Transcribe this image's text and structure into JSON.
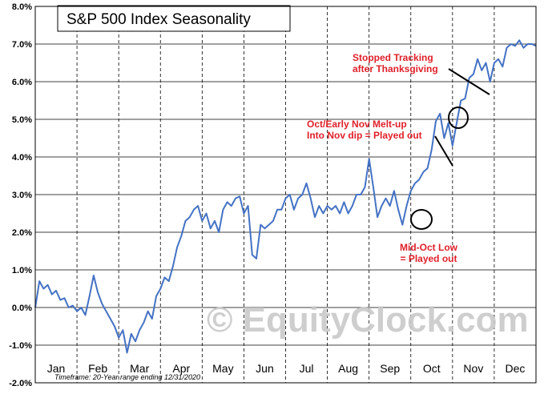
{
  "chart_data": {
    "type": "line",
    "title": "S&P 500 Index Seasonality",
    "footnote": "Timeframe: 20-Year range ending 12/31/2020",
    "watermark": "© EquityClock.com",
    "xlabel": "",
    "ylabel": "",
    "ylim": [
      -2.0,
      8.0
    ],
    "y_tick_values": [
      -2.0,
      -1.0,
      0.0,
      1.0,
      2.0,
      3.0,
      4.0,
      5.0,
      6.0,
      7.0,
      8.0
    ],
    "y_tick_labels": [
      "-2.0%",
      "-1.0%",
      "0.0%",
      "1.0%",
      "2.0%",
      "3.0%",
      "4.0%",
      "5.0%",
      "6.0%",
      "7.0%",
      "8.0%"
    ],
    "categories": [
      "Jan",
      "Feb",
      "Mar",
      "Apr",
      "May",
      "Jun",
      "Jul",
      "Aug",
      "Sep",
      "Oct",
      "Nov",
      "Dec"
    ],
    "grid": {
      "horizontal": true,
      "vertical": "dashed at month boundaries"
    },
    "line_color": "#4472c4",
    "annotation_color": "#e0202a",
    "series": [
      {
        "x": [
          0,
          0.1,
          0.2,
          0.3,
          0.4,
          0.5,
          0.6,
          0.7,
          0.8,
          0.9,
          1.0,
          1.1,
          1.2,
          1.3,
          1.4,
          1.5,
          1.6,
          1.7,
          1.8,
          1.9,
          2.0,
          2.1,
          2.2,
          2.3,
          2.4,
          2.5,
          2.6,
          2.7,
          2.8,
          2.9,
          3.0,
          3.1,
          3.2,
          3.3,
          3.4,
          3.5,
          3.6,
          3.7,
          3.8,
          3.9,
          4.0,
          4.1,
          4.2,
          4.3,
          4.4,
          4.5,
          4.6,
          4.7,
          4.8,
          4.9,
          5.0,
          5.1,
          5.2,
          5.3,
          5.4,
          5.5,
          5.6,
          5.7,
          5.8,
          5.9,
          6.0,
          6.1,
          6.2,
          6.3,
          6.4,
          6.5,
          6.6,
          6.7,
          6.8,
          6.9,
          7.0,
          7.1,
          7.2,
          7.3,
          7.4,
          7.5,
          7.6,
          7.7,
          7.8,
          7.9,
          8.0,
          8.1,
          8.2,
          8.3,
          8.4,
          8.5,
          8.6,
          8.7,
          8.8,
          8.9,
          9.0,
          9.1,
          9.2,
          9.3,
          9.4,
          9.5,
          9.6,
          9.7,
          9.8,
          9.9,
          10.0,
          10.1,
          10.2,
          10.3,
          10.4,
          10.5,
          10.6,
          10.7,
          10.8,
          10.9,
          11.0,
          11.1,
          11.2,
          11.3,
          11.4,
          11.5,
          11.6,
          11.7,
          11.8,
          11.9,
          12.0
        ],
        "values": [
          0.0,
          0.7,
          0.5,
          0.6,
          0.35,
          0.45,
          0.2,
          0.25,
          0.0,
          0.05,
          -0.1,
          0.0,
          -0.2,
          0.3,
          0.85,
          0.4,
          0.1,
          -0.1,
          -0.3,
          -0.5,
          -0.8,
          -0.6,
          -1.2,
          -0.7,
          -0.9,
          -0.6,
          -0.4,
          -0.1,
          -0.3,
          0.3,
          0.5,
          0.8,
          0.7,
          1.1,
          1.6,
          1.9,
          2.3,
          2.4,
          2.6,
          2.7,
          2.3,
          2.5,
          2.1,
          2.3,
          2.0,
          2.6,
          2.8,
          2.7,
          2.9,
          2.95,
          2.5,
          2.7,
          1.4,
          1.3,
          2.2,
          2.1,
          2.2,
          2.3,
          2.6,
          2.6,
          2.9,
          3.0,
          2.6,
          2.9,
          3.0,
          3.3,
          2.9,
          2.4,
          2.7,
          2.5,
          2.7,
          2.6,
          2.7,
          2.5,
          2.8,
          2.5,
          2.7,
          3.0,
          3.0,
          3.2,
          3.95,
          3.2,
          2.4,
          2.7,
          2.9,
          2.7,
          3.1,
          2.6,
          2.2,
          2.7,
          3.1,
          3.3,
          3.4,
          3.6,
          3.7,
          4.2,
          4.95,
          5.15,
          4.5,
          4.9,
          4.3,
          4.9,
          5.5,
          5.55,
          6.1,
          6.2,
          6.6,
          6.3,
          6.5,
          6.0,
          6.5,
          6.6,
          6.4,
          6.9,
          7.0,
          6.95,
          7.1,
          6.9,
          7.0,
          7.0,
          6.95
        ]
      }
    ],
    "annotations": [
      {
        "lines": [
          "Stopped Tracking",
          "after Thanksgiving"
        ]
      },
      {
        "lines": [
          "Oct/Early Nov Melt-up",
          "Into Nov dip = Played out"
        ]
      },
      {
        "lines": [
          "Mid-Oct Low",
          "=  Played out"
        ]
      }
    ]
  }
}
